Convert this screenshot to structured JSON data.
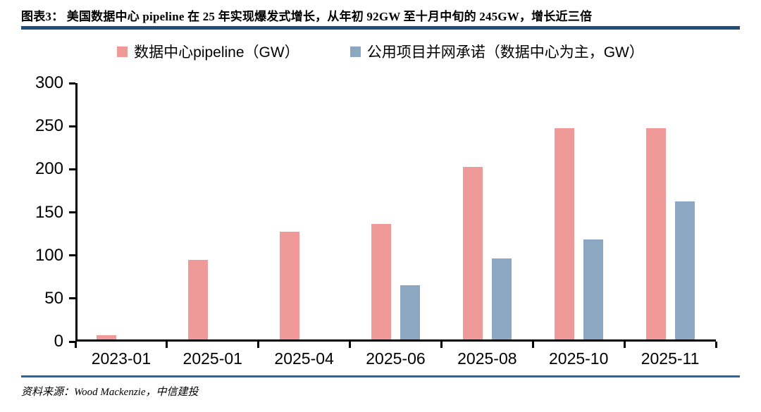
{
  "header": {
    "title": "图表3：  美国数据中心 pipeline 在 25 年实现爆发式增长，从年初 92GW 至十月中旬的 245GW，增长近三倍"
  },
  "chart_data": {
    "type": "bar",
    "categories": [
      "2023-01",
      "2025-01",
      "2025-04",
      "2025-06",
      "2025-08",
      "2025-10",
      "2025-11"
    ],
    "series": [
      {
        "name": "数据中心pipeline（GW）",
        "color": "#F09999",
        "values": [
          5,
          92,
          125,
          134,
          200,
          245,
          245
        ]
      },
      {
        "name": "公用项目并网承诺（数据中心为主，GW）",
        "color": "#8CA7C2",
        "values": [
          0,
          0,
          0,
          63,
          94,
          116,
          160
        ]
      }
    ],
    "title": "",
    "xlabel": "",
    "ylabel": "",
    "ylim": [
      0,
      300
    ],
    "ytick_step": 50,
    "grid": false,
    "legend_position": "top"
  },
  "footer": {
    "source": "资料来源：Wood Mackenzie，中信建投"
  },
  "colors": {
    "rule_top": "#1F4E79",
    "rule_bottom": "#2566A0",
    "axis": "#000000"
  }
}
